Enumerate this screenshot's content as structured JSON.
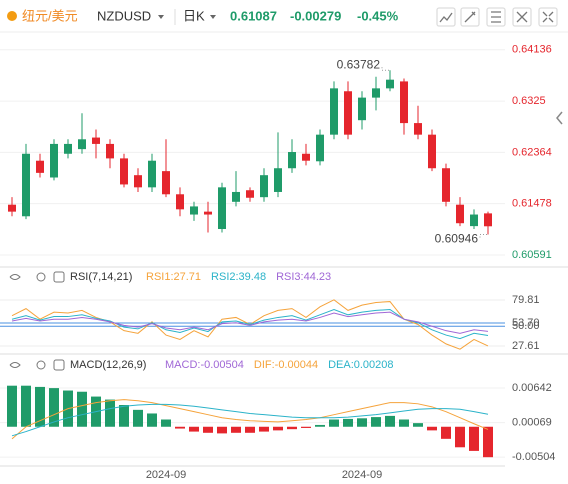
{
  "toolbar": {
    "name": "纽元/美元",
    "symbol": "NZDUSD",
    "period": "日K",
    "price": "0.61087",
    "change": "-0.00279",
    "change_pct": "-0.45%"
  },
  "chart_data": [
    {
      "type": "candlestick",
      "up_color": "#1f9b69",
      "down_color": "#e5262d",
      "open": [
        0.6146,
        0.6126,
        0.6222,
        0.6193,
        0.6234,
        0.6242,
        0.6262,
        0.6251,
        0.6226,
        0.6197,
        0.6176,
        0.6204,
        0.6164,
        0.6129,
        0.6134,
        0.6104,
        0.6151,
        0.6171,
        0.6159,
        0.6168,
        0.6209,
        0.6234,
        0.6221,
        0.6267,
        0.6342,
        0.6292,
        0.6331,
        0.6347,
        0.6359,
        0.6287,
        0.6267,
        0.6209,
        0.6146,
        0.6109,
        0.6131
      ],
      "high": [
        0.6159,
        0.6251,
        0.6234,
        0.6259,
        0.6259,
        0.6304,
        0.6276,
        0.6259,
        0.6234,
        0.6209,
        0.6234,
        0.6259,
        0.6176,
        0.6151,
        0.6151,
        0.6184,
        0.6204,
        0.6176,
        0.6209,
        0.6271,
        0.6259,
        0.6251,
        0.6276,
        0.6359,
        0.6359,
        0.6342,
        0.6367,
        0.63782,
        0.6364,
        0.6317,
        0.6276,
        0.6217,
        0.6159,
        0.6138,
        0.6134
      ],
      "low": [
        0.6126,
        0.6121,
        0.6193,
        0.6188,
        0.6226,
        0.6234,
        0.6226,
        0.6209,
        0.6176,
        0.6168,
        0.6168,
        0.6159,
        0.6126,
        0.6118,
        0.6098,
        0.6098,
        0.6143,
        0.6151,
        0.6151,
        0.6159,
        0.6201,
        0.6214,
        0.6214,
        0.6259,
        0.6259,
        0.6276,
        0.6309,
        0.6342,
        0.6267,
        0.6259,
        0.6204,
        0.6143,
        0.6109,
        0.6104,
        0.60946
      ],
      "close": [
        0.6134,
        0.6234,
        0.6201,
        0.6251,
        0.6251,
        0.6259,
        0.6251,
        0.6226,
        0.6181,
        0.6176,
        0.6222,
        0.6164,
        0.6138,
        0.6143,
        0.6129,
        0.6176,
        0.6168,
        0.6158,
        0.6197,
        0.6209,
        0.6237,
        0.6222,
        0.6267,
        0.6347,
        0.6267,
        0.6331,
        0.6347,
        0.6362,
        0.6287,
        0.6267,
        0.6209,
        0.6151,
        0.6114,
        0.6129,
        0.61087
      ],
      "ylim": [
        0.6047,
        0.6434
      ],
      "yticks": [
        0.64136,
        0.6325,
        0.62364,
        0.61478,
        0.60591
      ],
      "ytick_colors": [
        "#e5262d",
        "#e5262d",
        "#e5262d",
        "#e5262d",
        "#1f9b69"
      ],
      "grid": true
    },
    {
      "type": "line",
      "title": "RSI(7,14,21)",
      "series": [
        {
          "name": "RSI1:27.71",
          "color": "#f5a33b",
          "values": [
            62,
            70,
            58,
            66,
            65,
            68,
            60,
            55,
            45,
            42,
            55,
            40,
            35,
            45,
            38,
            58,
            60,
            52,
            62,
            68,
            70,
            60,
            72,
            80,
            68,
            74,
            77,
            78,
            58,
            52,
            40,
            30,
            24,
            35,
            27.71
          ]
        },
        {
          "name": "RSI2:39.48",
          "color": "#2bb3c9",
          "values": [
            58,
            62,
            57,
            61,
            61,
            63,
            59,
            56,
            49,
            47,
            54,
            46,
            43,
            48,
            44,
            55,
            56,
            52,
            57,
            60,
            62,
            57,
            63,
            69,
            63,
            66,
            68,
            69,
            58,
            54,
            46,
            40,
            36,
            42,
            39.48
          ]
        },
        {
          "name": "RSI3:44.23",
          "color": "#a067d6",
          "values": [
            56,
            59,
            56,
            58,
            58,
            60,
            58,
            55,
            51,
            49,
            53,
            48,
            46,
            49,
            46,
            53,
            54,
            51,
            55,
            57,
            58,
            56,
            60,
            65,
            61,
            63,
            65,
            66,
            58,
            55,
            50,
            45,
            42,
            46,
            44.23
          ]
        }
      ],
      "ylim": [
        20.8,
        96.8
      ],
      "yticks": [
        79.81,
        {
          "value": 53.7,
          "label": "53.70"
        },
        {
          "value": 50,
          "label": "50.00"
        },
        27.61
      ],
      "ytick_colors": [
        "#eeeeee",
        "#4a90e2",
        "#4a90e2",
        "#eeeeee"
      ]
    },
    {
      "type": "bar",
      "title": "MACD(12,26,9)",
      "up_color": "#1f9b69",
      "down_color": "#e5262d",
      "categories": [
        null,
        null,
        null,
        null,
        null,
        null,
        null,
        null,
        null,
        null,
        null,
        "2024-09",
        null,
        null,
        null,
        null,
        null,
        null,
        null,
        null,
        null,
        null,
        null,
        null,
        null,
        "2024-09",
        null,
        null,
        null,
        null,
        null,
        null,
        null,
        null,
        null
      ],
      "series": [
        {
          "name": "MACD:-0.00504",
          "color": "#a067d6",
          "kind": "bar",
          "values": [
            0.0068,
            0.0068,
            0.0066,
            0.0064,
            0.006,
            0.0058,
            0.005,
            0.0045,
            0.0036,
            0.0028,
            0.0022,
            0.0012,
            -0.0003,
            -0.0008,
            -0.001,
            -0.0011,
            -0.001,
            -0.001,
            -0.0008,
            -0.0006,
            -0.0004,
            -0.0002,
            0.0003,
            0.0012,
            0.0013,
            0.0014,
            0.0016,
            0.0018,
            0.0012,
            0.0006,
            -0.0006,
            -0.002,
            -0.0034,
            -0.004,
            -0.00504
          ]
        },
        {
          "name": "DIF:-0.00044",
          "color": "#f5a33b",
          "kind": "line",
          "values": [
            -0.002,
            0,
            0.001,
            0.002,
            0.003,
            0.0035,
            0.004,
            0.0043,
            0.0045,
            0.0043,
            0.004,
            0.0035,
            0.003,
            0.0025,
            0.002,
            0.0015,
            0.0012,
            0.001,
            0.0009,
            0.0008,
            0.001,
            0.0012,
            0.0015,
            0.002,
            0.0025,
            0.003,
            0.0035,
            0.004,
            0.004,
            0.0038,
            0.0033,
            0.0025,
            0.0015,
            0.0005,
            -0.00044
          ]
        },
        {
          "name": "DEA:0.00208",
          "color": "#2bb3c9",
          "kind": "line",
          "values": [
            -0.0015,
            -0.0008,
            0,
            0.0008,
            0.0015,
            0.002,
            0.0025,
            0.003,
            0.0034,
            0.0036,
            0.0037,
            0.0037,
            0.0036,
            0.0034,
            0.0031,
            0.0028,
            0.0025,
            0.0022,
            0.002,
            0.0018,
            0.0016,
            0.0015,
            0.0015,
            0.0015,
            0.0016,
            0.0018,
            0.002,
            0.0023,
            0.0026,
            0.0029,
            0.003,
            0.003,
            0.0029,
            0.0025,
            0.00208
          ]
        }
      ],
      "ylim": [
        -0.0065,
        0.0094
      ],
      "yticks": [
        0.00642,
        0.00069,
        -0.00504
      ]
    }
  ]
}
